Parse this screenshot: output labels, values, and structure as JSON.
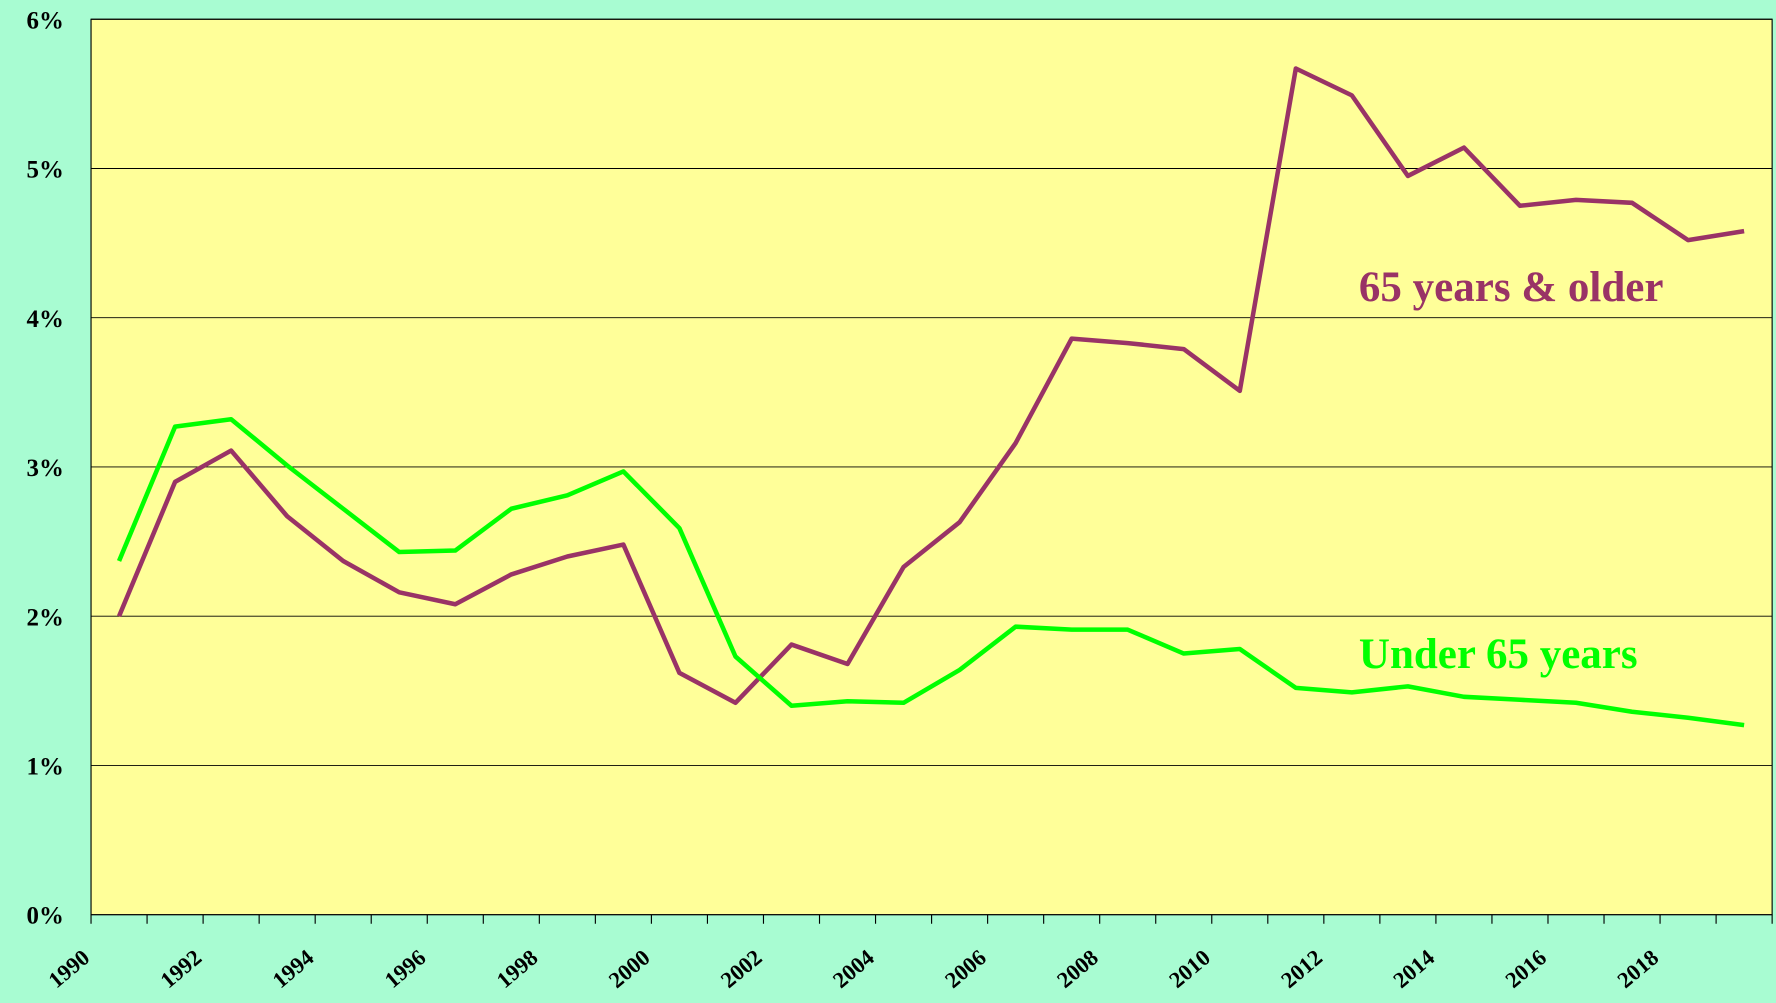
{
  "chart_data": {
    "type": "line",
    "categories": [
      "1990",
      null,
      "1992",
      null,
      "1994",
      null,
      "1996",
      null,
      "1998",
      null,
      "2000",
      null,
      "2002",
      null,
      "2004",
      null,
      "2006",
      null,
      "2008",
      null,
      "2010",
      null,
      "2012",
      null,
      "2014",
      null,
      "2016",
      null,
      "2018",
      null
    ],
    "series": [
      {
        "name": "65 years & older",
        "color": "#993366",
        "values": [
          2.0,
          2.9,
          3.11,
          2.67,
          2.37,
          2.16,
          2.08,
          2.28,
          2.4,
          2.48,
          1.62,
          1.42,
          1.81,
          1.68,
          2.33,
          2.63,
          3.16,
          3.86,
          3.83,
          3.79,
          3.51,
          5.67,
          5.49,
          4.95,
          5.14,
          4.75,
          4.79,
          4.77,
          4.52,
          4.58
        ]
      },
      {
        "name": "Under 65 years",
        "color": "#00ff00",
        "values": [
          2.37,
          3.27,
          3.32,
          3.01,
          2.72,
          2.43,
          2.44,
          2.72,
          2.81,
          2.97,
          2.59,
          1.73,
          1.4,
          1.43,
          1.42,
          1.64,
          1.93,
          1.91,
          1.91,
          1.75,
          1.78,
          1.52,
          1.49,
          1.53,
          1.46,
          1.44,
          1.42,
          1.36,
          1.32,
          1.27
        ]
      }
    ],
    "ylim": [
      0,
      6
    ],
    "yticks": [
      {
        "value": 0,
        "label": "0%"
      },
      {
        "value": 1,
        "label": "1%"
      },
      {
        "value": 2,
        "label": "2%"
      },
      {
        "value": 3,
        "label": "3%"
      },
      {
        "value": 4,
        "label": "4%"
      },
      {
        "value": 5,
        "label": "5%"
      },
      {
        "value": 6,
        "label": "6%"
      }
    ],
    "grid": true
  }
}
